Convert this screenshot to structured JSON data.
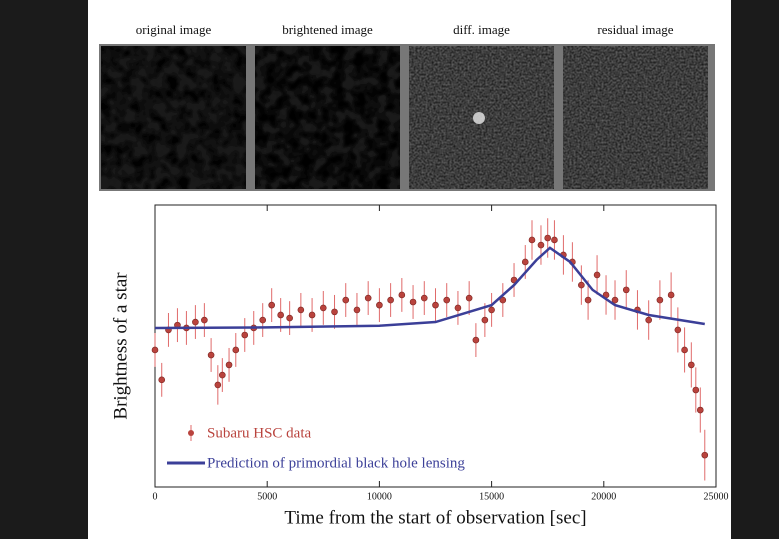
{
  "image_panels": [
    {
      "label": "original image"
    },
    {
      "label": "brightened image"
    },
    {
      "label": "diff. image"
    },
    {
      "label": "residual image"
    }
  ],
  "chart_data": {
    "type": "scatter",
    "xlabel": "Time from the start of observation [sec]",
    "ylabel": "Brightness of a star",
    "xlim": [
      0,
      25000
    ],
    "ylim": [
      0,
      100
    ],
    "xticks": [
      0,
      5000,
      10000,
      15000,
      20000,
      25000
    ],
    "legend": "lower left",
    "series": [
      {
        "name": "Subaru HSC data",
        "type": "scatter",
        "color": "#b9433d",
        "error_color": "#e06a6a",
        "x": [
          0,
          300,
          600,
          1000,
          1400,
          1800,
          2200,
          2500,
          2800,
          3000,
          3300,
          3600,
          4000,
          4400,
          4800,
          5200,
          5600,
          6000,
          6500,
          7000,
          7500,
          8000,
          8500,
          9000,
          9500,
          10000,
          10500,
          11000,
          11500,
          12000,
          12500,
          13000,
          13500,
          14000,
          14300,
          14700,
          15000,
          15500,
          16000,
          16500,
          16800,
          17200,
          17500,
          17800,
          18200,
          18600,
          19000,
          19300,
          19700,
          20100,
          20500,
          21000,
          21500,
          22000,
          22500,
          23000,
          23300,
          23600,
          23900,
          24100,
          24300,
          24500
        ],
        "values": [
          48.6,
          38,
          55.7,
          57.4,
          56.4,
          58.5,
          59.2,
          46.8,
          36.2,
          39.7,
          43.3,
          48.6,
          53.9,
          56.4,
          59.2,
          64.5,
          61,
          59.9,
          62.8,
          61,
          63.5,
          62.1,
          66.3,
          62.8,
          67,
          64.5,
          66.3,
          68.1,
          65.6,
          67,
          64.5,
          66.3,
          63.5,
          67,
          52.1,
          59.2,
          62.8,
          66.3,
          73.4,
          79.8,
          87.6,
          85.8,
          88.3,
          87.6,
          82.3,
          79.8,
          71.6,
          66.3,
          75.2,
          68.1,
          66.3,
          69.9,
          62.8,
          59.2,
          66.3,
          68.1,
          55.7,
          48.6,
          43.3,
          34.4,
          27.3,
          11.3
        ],
        "errors": [
          6,
          6,
          6,
          6,
          6,
          6,
          6,
          6,
          7,
          6,
          6,
          6,
          6,
          6,
          6,
          6,
          6,
          6,
          6,
          6,
          6,
          6,
          6,
          6,
          6,
          6,
          6,
          6,
          6,
          6,
          6,
          6,
          6,
          6,
          6,
          6,
          6,
          6,
          6,
          6,
          7,
          7,
          7,
          7,
          7,
          7,
          7,
          7,
          7,
          7,
          7,
          7,
          7,
          7,
          7,
          8,
          8,
          8,
          8,
          8,
          8,
          9
        ]
      },
      {
        "name": "Prediction of primordial black hole lensing",
        "type": "line",
        "color": "#3b3f98",
        "x": [
          0,
          5000,
          10000,
          12500,
          15000,
          16000,
          17000,
          17600,
          18500,
          19500,
          20500,
          22000,
          24500
        ],
        "values": [
          56.4,
          56.6,
          57.2,
          58.5,
          64.5,
          71.6,
          80.5,
          84.8,
          79.8,
          69.9,
          64.5,
          61,
          57.8
        ]
      }
    ]
  }
}
